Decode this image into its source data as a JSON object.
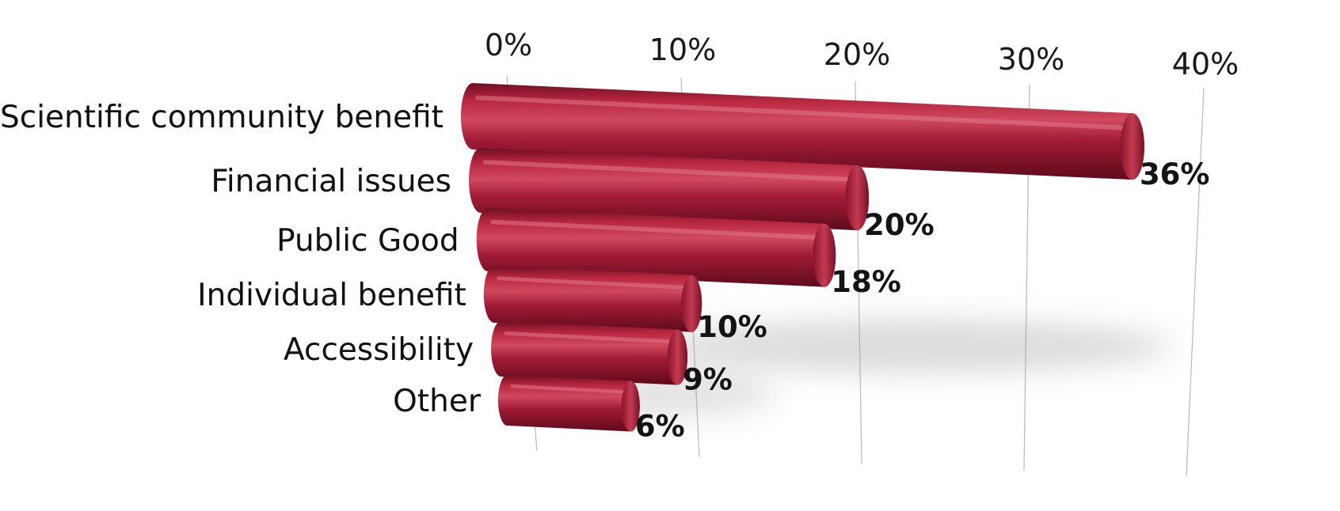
{
  "chart_data": {
    "type": "bar",
    "orientation": "horizontal",
    "style": "3d-cylinder",
    "categories": [
      "Scientific community benefit",
      "Financial issues",
      "Public Good",
      "Individual benefit",
      "Accessibility",
      "Other"
    ],
    "values": [
      36,
      20,
      18,
      10,
      9,
      6
    ],
    "value_labels": [
      "36%",
      "20%",
      "18%",
      "10%",
      "9%",
      "6%"
    ],
    "x_ticks": [
      0,
      10,
      20,
      30,
      40
    ],
    "x_tick_labels": [
      "0%",
      "10%",
      "20%",
      "30%",
      "40%"
    ],
    "xlim": [
      0,
      40
    ],
    "axis_position": "top",
    "grid": true,
    "legend": "none",
    "colors": {
      "bar": "#a01a35",
      "bar_dark": "#6e0f22",
      "bar_light": "#d0495e",
      "grid": "#b8b8b8"
    }
  }
}
